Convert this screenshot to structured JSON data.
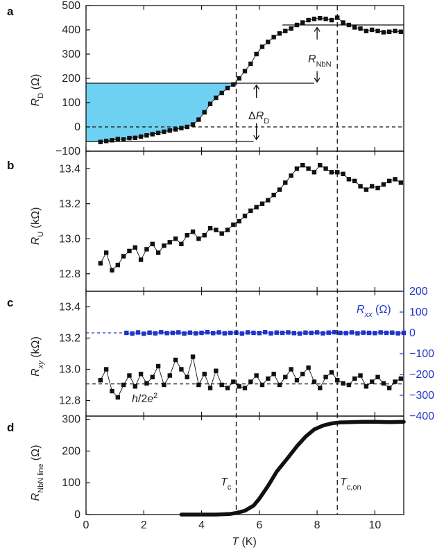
{
  "chart_data": [
    {
      "panel": "a",
      "type": "scatter",
      "ylabel": "R_D (Ω)",
      "ylim": [
        -100,
        500
      ],
      "yticks": [
        "−100",
        "0",
        "100",
        "200",
        "300",
        "400",
        "500"
      ],
      "xlim": [
        0,
        11
      ],
      "shaded_region_to": 180,
      "hlines": [
        0,
        180,
        -60,
        420
      ],
      "annotations": [
        "R_NbN",
        "ΔR_D"
      ],
      "x": [
        0.5,
        0.7,
        0.9,
        1.1,
        1.3,
        1.5,
        1.7,
        1.9,
        2.1,
        2.3,
        2.5,
        2.7,
        2.9,
        3.1,
        3.3,
        3.5,
        3.7,
        3.9,
        4.1,
        4.3,
        4.5,
        4.7,
        4.9,
        5.1,
        5.3,
        5.5,
        5.7,
        5.9,
        6.1,
        6.3,
        6.5,
        6.7,
        6.9,
        7.1,
        7.3,
        7.5,
        7.7,
        7.9,
        8.1,
        8.3,
        8.5,
        8.7,
        8.9,
        9.1,
        9.3,
        9.5,
        9.7,
        9.9,
        10.1,
        10.3,
        10.5,
        10.7,
        10.9
      ],
      "y": [
        -62,
        -58,
        -55,
        -50,
        -52,
        -46,
        -45,
        -40,
        -35,
        -30,
        -25,
        -20,
        -15,
        -10,
        -5,
        0,
        10,
        30,
        60,
        95,
        120,
        140,
        160,
        175,
        200,
        230,
        260,
        300,
        330,
        350,
        370,
        385,
        395,
        405,
        420,
        430,
        440,
        445,
        448,
        445,
        440,
        450,
        430,
        420,
        410,
        405,
        395,
        400,
        395,
        390,
        392,
        395,
        392
      ]
    },
    {
      "panel": "b",
      "type": "scatter",
      "ylabel": "R_U (kΩ)",
      "ylim": [
        12.7,
        13.5
      ],
      "yticks": [
        "12.8",
        "13.0",
        "13.2",
        "13.4"
      ],
      "xlim": [
        0,
        11
      ],
      "x": [
        0.5,
        0.7,
        0.9,
        1.1,
        1.3,
        1.5,
        1.7,
        1.9,
        2.1,
        2.3,
        2.5,
        2.7,
        2.9,
        3.1,
        3.3,
        3.5,
        3.7,
        3.9,
        4.1,
        4.3,
        4.5,
        4.7,
        4.9,
        5.1,
        5.3,
        5.5,
        5.7,
        5.9,
        6.1,
        6.3,
        6.5,
        6.7,
        6.9,
        7.1,
        7.3,
        7.5,
        7.7,
        7.9,
        8.1,
        8.3,
        8.5,
        8.7,
        8.9,
        9.1,
        9.3,
        9.5,
        9.7,
        9.9,
        10.1,
        10.3,
        10.5,
        10.7,
        10.9
      ],
      "y": [
        12.86,
        12.92,
        12.82,
        12.85,
        12.9,
        12.93,
        12.95,
        12.88,
        12.94,
        12.97,
        12.92,
        12.96,
        12.98,
        13.0,
        12.97,
        13.02,
        13.04,
        13.0,
        13.02,
        13.06,
        13.05,
        13.03,
        13.05,
        13.08,
        13.1,
        13.13,
        13.16,
        13.18,
        13.2,
        13.22,
        13.25,
        13.28,
        13.32,
        13.36,
        13.4,
        13.42,
        13.4,
        13.38,
        13.42,
        13.4,
        13.38,
        13.38,
        13.37,
        13.34,
        13.33,
        13.3,
        13.28,
        13.3,
        13.29,
        13.31,
        13.33,
        13.34,
        13.32
      ]
    },
    {
      "panel": "c",
      "type": "scatter",
      "ylabel": "R_xy (kΩ)",
      "ylim": [
        12.7,
        13.5
      ],
      "yticks": [
        "12.8",
        "13.0",
        "13.2",
        "13.4"
      ],
      "xlim": [
        0,
        11
      ],
      "y2label": "R_xx (Ω)",
      "y2lim": [
        -400,
        200
      ],
      "y2ticks": [
        "200",
        "100",
        "0",
        "−100",
        "−200",
        "−300",
        "−400"
      ],
      "reference_label": "h/2e²",
      "reference_value": 12.906,
      "series": [
        {
          "name": "R_xy",
          "x": [
            0.5,
            0.7,
            0.9,
            1.1,
            1.3,
            1.5,
            1.7,
            1.9,
            2.1,
            2.3,
            2.5,
            2.7,
            2.9,
            3.1,
            3.3,
            3.5,
            3.7,
            3.9,
            4.1,
            4.3,
            4.5,
            4.7,
            4.9,
            5.1,
            5.3,
            5.5,
            5.7,
            5.9,
            6.1,
            6.3,
            6.5,
            6.7,
            6.9,
            7.1,
            7.3,
            7.5,
            7.7,
            7.9,
            8.1,
            8.3,
            8.5,
            8.7,
            8.9,
            9.1,
            9.3,
            9.5,
            9.7,
            9.9,
            10.1,
            10.3,
            10.5,
            10.7,
            10.9
          ],
          "y": [
            12.93,
            13.0,
            12.86,
            12.82,
            12.9,
            12.96,
            12.89,
            12.97,
            12.91,
            12.95,
            13.02,
            12.9,
            12.96,
            13.06,
            13.0,
            12.95,
            13.08,
            12.9,
            12.97,
            12.88,
            12.99,
            12.9,
            12.88,
            12.92,
            12.89,
            12.88,
            12.92,
            12.96,
            12.9,
            12.94,
            12.97,
            12.9,
            12.95,
            13.0,
            12.93,
            12.97,
            13.01,
            12.92,
            12.88,
            12.95,
            12.98,
            12.93,
            12.91,
            12.9,
            12.94,
            12.96,
            12.89,
            12.92,
            12.95,
            12.91,
            12.88,
            12.92,
            12.94
          ]
        },
        {
          "name": "R_xx",
          "x": [
            1.4,
            1.6,
            1.8,
            2.0,
            2.2,
            2.4,
            2.6,
            2.8,
            3.0,
            3.2,
            3.4,
            3.6,
            3.8,
            4.0,
            4.2,
            4.4,
            4.6,
            4.8,
            5.0,
            5.2,
            5.4,
            5.6,
            5.8,
            6.0,
            6.2,
            6.4,
            6.6,
            6.8,
            7.0,
            7.2,
            7.4,
            7.6,
            7.8,
            8.0,
            8.2,
            8.4,
            8.6,
            8.8,
            9.0,
            9.2,
            9.4,
            9.6,
            9.8,
            10.0,
            10.2,
            10.4,
            10.6,
            10.8,
            11.0
          ],
          "y": [
            0,
            -3,
            2,
            -4,
            1,
            -2,
            3,
            -1,
            0,
            2,
            -3,
            1,
            -2,
            0,
            3,
            -1,
            2,
            -2,
            0,
            1,
            -3,
            2,
            0,
            -1,
            3,
            -2,
            1,
            0,
            2,
            -1,
            -3,
            1,
            0,
            2,
            -2,
            1,
            3,
            0,
            -1,
            2,
            -2,
            1,
            0,
            -1,
            2,
            0,
            1,
            -2,
            0
          ]
        }
      ]
    },
    {
      "panel": "d",
      "type": "line",
      "ylabel": "R_NbN line (Ω)",
      "ylim": [
        0,
        310
      ],
      "yticks": [
        "0",
        "100",
        "200",
        "300"
      ],
      "xlim": [
        0,
        11
      ],
      "xticks": [
        "0",
        "2",
        "4",
        "6",
        "8",
        "10"
      ],
      "xlabel": "T (K)",
      "x": [
        3.3,
        4.0,
        4.5,
        5.0,
        5.2,
        5.5,
        5.8,
        6.0,
        6.3,
        6.6,
        7.0,
        7.3,
        7.6,
        7.9,
        8.2,
        8.5,
        8.8,
        9.2,
        9.6,
        10.0,
        10.5,
        11.0
      ],
      "y": [
        0,
        0,
        0,
        2,
        5,
        12,
        28,
        50,
        90,
        135,
        180,
        215,
        245,
        268,
        280,
        287,
        290,
        291,
        292,
        292,
        291,
        292
      ]
    }
  ],
  "vertical_markers": [
    {
      "x": 5.2,
      "label": "T_c"
    },
    {
      "x": 8.7,
      "label": "T_c,on"
    }
  ]
}
